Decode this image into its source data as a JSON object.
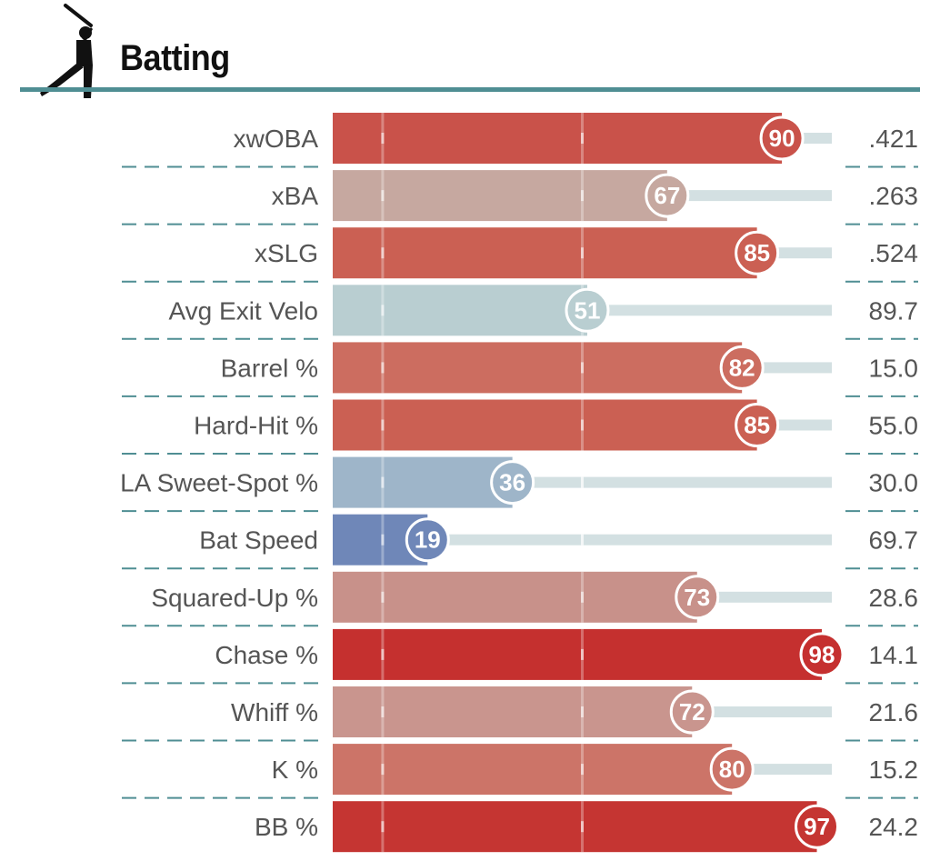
{
  "header": {
    "title": "Batting",
    "icon": "batter-silhouette-icon"
  },
  "colors": {
    "header_rule": "#4f8e93",
    "separator": "#4f8e93",
    "track": "#d3e0e2",
    "label_text": "#555555"
  },
  "chart_data": {
    "type": "bar",
    "orientation": "horizontal",
    "xlim": [
      0,
      100
    ],
    "reference_lines": [
      10,
      50
    ],
    "metrics": [
      {
        "label": "xwOBA",
        "percentile": 90,
        "value": ".421",
        "color": "#c9524a"
      },
      {
        "label": "xBA",
        "percentile": 67,
        "value": ".263",
        "color": "#c6a8a0"
      },
      {
        "label": "xSLG",
        "percentile": 85,
        "value": ".524",
        "color": "#cb6053"
      },
      {
        "label": "Avg Exit Velo",
        "percentile": 51,
        "value": "89.7",
        "color": "#b9ced1"
      },
      {
        "label": "Barrel %",
        "percentile": 82,
        "value": "15.0",
        "color": "#cc6d60"
      },
      {
        "label": "Hard-Hit %",
        "percentile": 85,
        "value": "55.0",
        "color": "#cb6053"
      },
      {
        "label": "LA Sweet-Spot %",
        "percentile": 36,
        "value": "30.0",
        "color": "#9eb5c9"
      },
      {
        "label": "Bat Speed",
        "percentile": 19,
        "value": "69.7",
        "color": "#6f87b8"
      },
      {
        "label": "Squared-Up %",
        "percentile": 73,
        "value": "28.6",
        "color": "#c8918a"
      },
      {
        "label": "Chase %",
        "percentile": 98,
        "value": "14.1",
        "color": "#c5302f"
      },
      {
        "label": "Whiff %",
        "percentile": 72,
        "value": "21.6",
        "color": "#c9958e"
      },
      {
        "label": "K %",
        "percentile": 80,
        "value": "15.2",
        "color": "#cc7468"
      },
      {
        "label": "BB %",
        "percentile": 97,
        "value": "24.2",
        "color": "#c53532"
      }
    ]
  }
}
